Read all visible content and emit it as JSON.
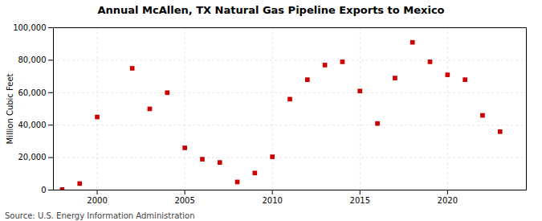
{
  "chart_data": {
    "type": "scatter",
    "title": "Annual McAllen, TX Natural Gas Pipeline Exports to Mexico",
    "ylabel": "Million Cubic Feet",
    "source": "Source: U.S. Energy Information Administration",
    "x": [
      1998,
      1999,
      2000,
      2002,
      2003,
      2004,
      2005,
      2006,
      2007,
      2008,
      2009,
      2010,
      2011,
      2012,
      2013,
      2014,
      2015,
      2016,
      2017,
      2018,
      2019,
      2020,
      2021,
      2022,
      2023
    ],
    "values": [
      300,
      4000,
      45000,
      75000,
      50000,
      60000,
      26000,
      19000,
      17000,
      5000,
      10500,
      20500,
      56000,
      68000,
      77000,
      79000,
      61000,
      41000,
      69000,
      91000,
      79000,
      71000,
      68000,
      46000,
      36000
    ],
    "color": "#cc0000",
    "marker": "square",
    "xlim": [
      1997.5,
      2024.5
    ],
    "xticks": [
      2000,
      2005,
      2010,
      2015,
      2020
    ],
    "ylim": [
      0,
      100000
    ],
    "yticks": [
      0,
      {
        "value": 20000,
        "label": "20,000"
      },
      {
        "value": 40000,
        "label": "40,000"
      },
      {
        "value": 60000,
        "label": "60,000"
      },
      {
        "value": 80000,
        "label": "80,000"
      },
      {
        "value": 100000,
        "label": "100,000"
      }
    ],
    "grid": true
  }
}
